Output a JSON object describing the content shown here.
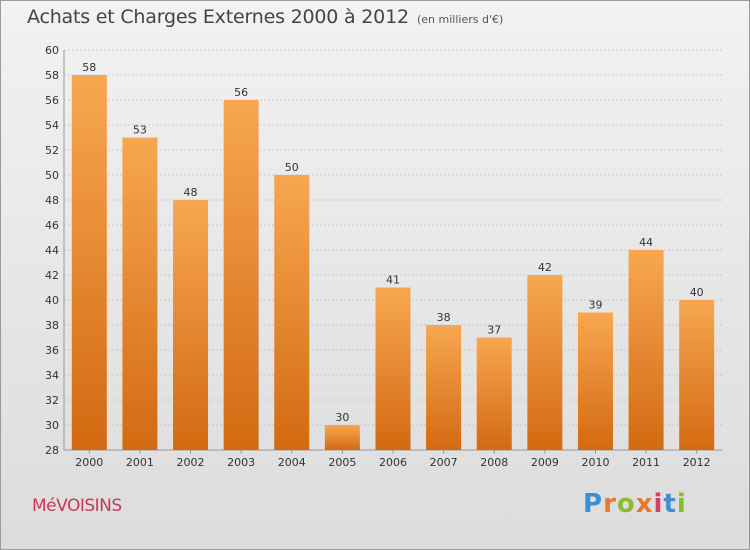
{
  "title": "Achats et Charges Externes 2000 à 2012",
  "subtitle": "(en milliers d'€)",
  "town": "MéVOISINS",
  "brand": {
    "letters": [
      "P",
      "r",
      "o",
      "x",
      "i",
      "t",
      "i"
    ],
    "colors": [
      "#3e8fd1",
      "#e8792a",
      "#8cbb2f",
      "#e8792a",
      "#d53d6b",
      "#3e8fd1",
      "#8cbb2f"
    ]
  },
  "colors": {
    "bar_top": "#f7a751",
    "bar_bottom": "#d36a11",
    "grid": "#c8c8c8",
    "axis_text": "#333333",
    "label_text": "#333333"
  },
  "chart_data": {
    "type": "bar",
    "title": "Achats et Charges Externes 2000 à 2012",
    "subtitle": "(en milliers d'€)",
    "categories": [
      "2000",
      "2001",
      "2002",
      "2003",
      "2004",
      "2005",
      "2006",
      "2007",
      "2008",
      "2009",
      "2010",
      "2011",
      "2012"
    ],
    "values": [
      58,
      53,
      48,
      56,
      50,
      30,
      41,
      38,
      37,
      42,
      39,
      44,
      40
    ],
    "ylim": [
      28,
      60
    ],
    "yticks": [
      28,
      30,
      32,
      34,
      36,
      38,
      40,
      42,
      44,
      46,
      48,
      50,
      52,
      54,
      56,
      58,
      60
    ],
    "grid": true,
    "xlabel": "",
    "ylabel": ""
  }
}
